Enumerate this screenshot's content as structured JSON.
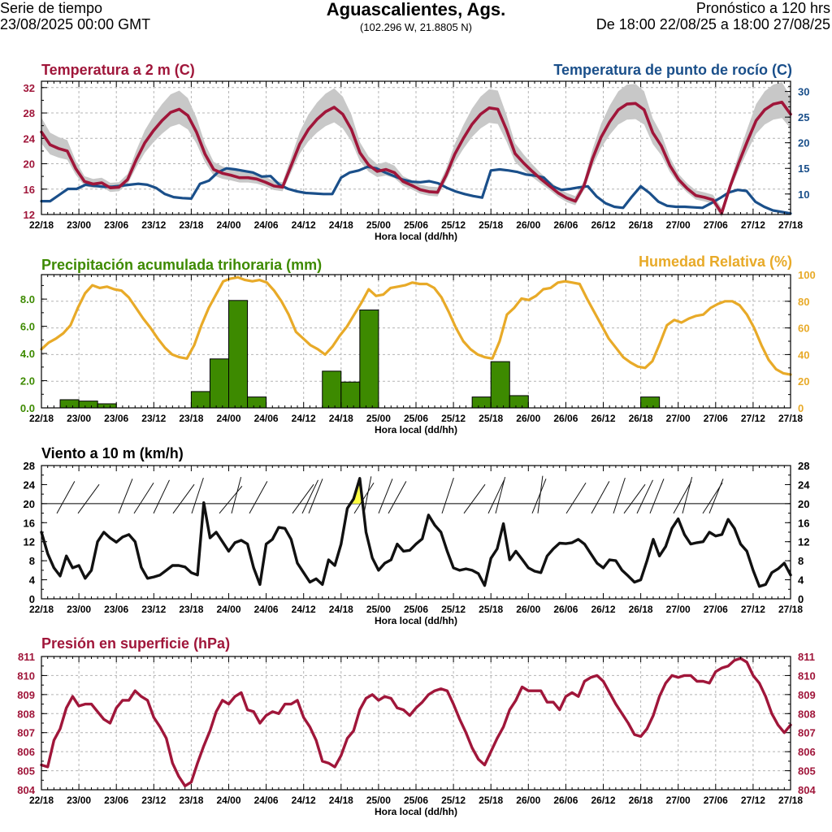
{
  "header": {
    "left_line1": "Serie de tiempo",
    "left_line2": "23/08/2025 00:00 GMT",
    "title": "Aguascalientes, Ags.",
    "coords": "(102.296 W, 21.8805 N)",
    "right_line1": "Pronóstico a 120 hrs",
    "right_line2": "De 18:00 22/08/25 a 18:00 27/08/25"
  },
  "chart_data": [
    {
      "id": "temperature",
      "type": "line",
      "title": "Temperatura a 2 m (C)",
      "title_right": "Temperatura de punto de rocío (C)",
      "xlabel": "Hora local (dd/hh)",
      "x_ticks": [
        "22/18",
        "23/00",
        "23/06",
        "23/12",
        "23/18",
        "24/00",
        "24/06",
        "24/12",
        "24/18",
        "25/00",
        "25/06",
        "25/12",
        "25/18",
        "26/00",
        "26/06",
        "26/12",
        "26/18",
        "27/00",
        "27/06",
        "27/12",
        "27/18"
      ],
      "y_left": {
        "range": [
          12,
          33
        ],
        "ticks": [
          "12",
          "16",
          "20",
          "24",
          "28",
          "32"
        ]
      },
      "y_right": {
        "range": [
          6,
          32
        ],
        "ticks": [
          "10",
          "15",
          "20",
          "25",
          "30"
        ]
      },
      "series": [
        {
          "name": "Temperatura a 2 m",
          "axis": "left",
          "color": "#a0163a",
          "values": [
            25,
            23,
            22.4,
            22,
            19.2,
            17.2,
            16.8,
            17,
            16.2,
            16.3,
            17.5,
            20.6,
            23.3,
            25.2,
            26.8,
            28.1,
            28.6,
            27.6,
            25,
            21.5,
            19.1,
            18.5,
            18.2,
            17.8,
            17.8,
            17.6,
            17.1,
            16.5,
            16.3,
            19.7,
            23.1,
            25.4,
            27,
            28.2,
            28.9,
            27.8,
            25.4,
            21.7,
            19.8,
            18.8,
            19.1,
            18.6,
            17.2,
            16.6,
            15.9,
            15.6,
            15.5,
            18.2,
            21.5,
            24,
            26.2,
            27.8,
            28.8,
            28.6,
            25.4,
            21.6,
            20.1,
            18.8,
            17.6,
            16.5,
            15.4,
            14.6,
            14.1,
            16.5,
            20.8,
            24.2,
            26.6,
            28.5,
            29.4,
            29.5,
            28.5,
            24.9,
            22.8,
            19.7,
            17.5,
            16.1,
            15,
            14.7,
            14.3,
            12.2,
            16.5,
            20.2,
            23.6,
            26.8,
            28.5,
            29.4,
            29.7,
            27.8
          ]
        },
        {
          "name": "Temperatura de punto de rocío",
          "axis": "right",
          "color": "#1a4f8a",
          "values": [
            8.6,
            8.6,
            9.8,
            11,
            11,
            11.8,
            11.6,
            11.4,
            11.4,
            11.6,
            11.8,
            12,
            11.8,
            11.2,
            10,
            9.4,
            9.2,
            9.1,
            12,
            12.6,
            14.2,
            15,
            14.8,
            14.5,
            14.2,
            13.4,
            13.5,
            11.8,
            11,
            10.5,
            10.2,
            10.1,
            10,
            10,
            13.2,
            14.2,
            14.6,
            15.3,
            15,
            14.2,
            13.5,
            12.8,
            12.4,
            12.3,
            12.5,
            12.1,
            11.2,
            10.5,
            10,
            9.6,
            9.3,
            14.6,
            14.8,
            14.6,
            14.3,
            13.8,
            13.6,
            13.2,
            11.5,
            10.8,
            11,
            11.3,
            11.5,
            9.5,
            8.2,
            7.5,
            7.3,
            9.5,
            11.5,
            10.2,
            8.5,
            7.7,
            7.5,
            7.5,
            7.4,
            7.3,
            8.2,
            9.2,
            10.3,
            10.8,
            10.6,
            8.5,
            7.5,
            6.8,
            6.5,
            6.2
          ]
        }
      ]
    },
    {
      "id": "precipitation",
      "type": "bar",
      "title": "Precipitación acumulada trihoraria (mm)",
      "title_right": "Humedad Relativa (%)",
      "xlabel": "Hora local (dd/hh)",
      "y_left": {
        "range": [
          0,
          9.8
        ],
        "ticks": [
          "0.0",
          "2.0",
          "4.0",
          "6.0",
          "8.0"
        ]
      },
      "y_right": {
        "range": [
          0,
          100
        ],
        "ticks": [
          "0",
          "20",
          "40",
          "60",
          "80",
          "100"
        ]
      },
      "bars_color": "#3d8a00",
      "bars": [
        {
          "start_h": 3,
          "value": 0.6
        },
        {
          "start_h": 6,
          "value": 0.5
        },
        {
          "start_h": 9,
          "value": 0.3
        },
        {
          "start_h": 24,
          "value": 1.2
        },
        {
          "start_h": 27,
          "value": 3.6
        },
        {
          "start_h": 30,
          "value": 7.9
        },
        {
          "start_h": 33,
          "value": 0.8
        },
        {
          "start_h": 45,
          "value": 2.7
        },
        {
          "start_h": 48,
          "value": 1.9
        },
        {
          "start_h": 51,
          "value": 7.2
        },
        {
          "start_h": 69,
          "value": 0.8
        },
        {
          "start_h": 72,
          "value": 3.4
        },
        {
          "start_h": 75,
          "value": 0.9
        },
        {
          "start_h": 96,
          "value": 0.8
        }
      ],
      "series": [
        {
          "name": "Humedad Relativa",
          "axis": "right",
          "color": "#e8aa28",
          "values": [
            44,
            49,
            52,
            56,
            62,
            75,
            86,
            92,
            90,
            91,
            89,
            88,
            83,
            75,
            67,
            60,
            52,
            45,
            40,
            38,
            37,
            47,
            62,
            75,
            85,
            95,
            97,
            98,
            96,
            95,
            96,
            94,
            88,
            80,
            70,
            57,
            52,
            47,
            44,
            40,
            46,
            54,
            61,
            70,
            79,
            89,
            84,
            85,
            90,
            91,
            92,
            94,
            93,
            93,
            90,
            83,
            72,
            60,
            50,
            44,
            40,
            38,
            37,
            50,
            70,
            75,
            82,
            81,
            84,
            89,
            90,
            94,
            95,
            94,
            93,
            82,
            72,
            62,
            52,
            45,
            38,
            34,
            31,
            30,
            35,
            48,
            62,
            66,
            64,
            67,
            69,
            70,
            75,
            78,
            80,
            80,
            77,
            70,
            60,
            47,
            36,
            29,
            26,
            25
          ]
        }
      ]
    },
    {
      "id": "wind",
      "type": "line",
      "title": "Viento a 10 m (km/h)",
      "xlabel": "Hora local (dd/hh)",
      "y_left": {
        "range": [
          0,
          28
        ],
        "ticks": [
          "0",
          "4",
          "8",
          "12",
          "16",
          "20",
          "24",
          "28"
        ]
      },
      "y_right": {
        "range": [
          0,
          28
        ],
        "ticks": [
          "0",
          "4",
          "8",
          "12",
          "16",
          "20",
          "24",
          "28"
        ]
      },
      "reference_line": 20,
      "highlight_color": "#ffff40",
      "series": [
        {
          "name": "Viento a 10 m",
          "color": "#111111",
          "values": [
            14,
            9.5,
            6.5,
            4.8,
            9,
            6.5,
            7,
            4.3,
            6,
            12,
            14,
            12.8,
            11.9,
            13,
            13.5,
            12,
            6.6,
            4.3,
            4.6,
            5,
            6,
            7,
            7,
            6.7,
            5.5,
            5,
            20.2,
            12.8,
            14,
            12,
            10,
            11.8,
            12.3,
            11.5,
            6.5,
            3,
            11.5,
            12.5,
            15,
            14.8,
            12.5,
            7.5,
            5.5,
            3.5,
            4.2,
            3,
            8.2,
            7,
            11.5,
            19,
            21,
            25.3,
            14,
            8.6,
            6,
            7.5,
            8.2,
            11.5,
            10,
            10.2,
            11.5,
            12.6,
            17.6,
            15.5,
            14,
            10,
            6.5,
            6,
            6.3,
            6,
            5.3,
            2.8,
            8.5,
            10.5,
            15.8,
            8.2,
            10,
            8.3,
            6.5,
            5.8,
            5.5,
            9,
            10.5,
            11.7,
            11.6,
            11.8,
            12.5,
            11.5,
            9.5,
            7.5,
            6.5,
            8.2,
            8,
            6,
            4.8,
            3.5,
            4,
            8,
            12.5,
            9,
            11,
            14.8,
            16.8,
            13.5,
            11.5,
            11.8,
            12,
            14,
            13.2,
            13.5,
            16.7,
            14.8,
            11.5,
            10,
            6,
            2.6,
            3,
            5.5,
            6.3,
            7.5,
            5
          ]
        }
      ]
    },
    {
      "id": "pressure",
      "type": "line",
      "title": "Presión en superficie (hPa)",
      "xlabel": "Hora local (dd/hh)",
      "y_left": {
        "range": [
          804,
          811
        ],
        "ticks": [
          "804",
          "805",
          "806",
          "807",
          "808",
          "809",
          "810",
          "811"
        ]
      },
      "y_right": {
        "range": [
          804,
          811
        ],
        "ticks": [
          "804",
          "805",
          "806",
          "807",
          "808",
          "809",
          "810",
          "811"
        ]
      },
      "series": [
        {
          "name": "Presión en superficie",
          "color": "#a0163a",
          "values": [
            805.3,
            805.2,
            806.6,
            807.2,
            808.3,
            808.9,
            808.4,
            808.5,
            808.5,
            808.1,
            807.7,
            807.5,
            808.3,
            808.7,
            808.7,
            809.2,
            808.9,
            808.7,
            807.8,
            807.3,
            806.7,
            805.4,
            804.7,
            804.2,
            804.4,
            805.4,
            806.3,
            807.1,
            808.1,
            808.7,
            808.5,
            808.9,
            809.1,
            808.2,
            808.1,
            807.5,
            807.9,
            808.1,
            808,
            808.5,
            808.5,
            808.7,
            807.8,
            807.3,
            806.6,
            805.5,
            805.4,
            805.2,
            805.8,
            806.7,
            807.1,
            808.2,
            808.8,
            809,
            808.7,
            808.9,
            808.8,
            808.3,
            808.2,
            807.9,
            808.3,
            808.6,
            809,
            809.2,
            809.3,
            809.2,
            808.5,
            807.7,
            807,
            806.2,
            805.6,
            805.3,
            806,
            806.7,
            807.3,
            808.2,
            808.7,
            809.4,
            809.2,
            809.2,
            809.2,
            808.6,
            808.6,
            808.2,
            808.9,
            809.1,
            808.9,
            809.7,
            809.9,
            810,
            809.7,
            809.1,
            808.5,
            808,
            807.5,
            806.9,
            806.8,
            807.2,
            807.9,
            808.9,
            809.6,
            810,
            809.9,
            810,
            810,
            809.7,
            809.7,
            809.6,
            810.2,
            810.4,
            810.5,
            810.8,
            810.9,
            810.7,
            810,
            809.6,
            808.9,
            808,
            807.4,
            807,
            807.4
          ]
        }
      ]
    }
  ]
}
